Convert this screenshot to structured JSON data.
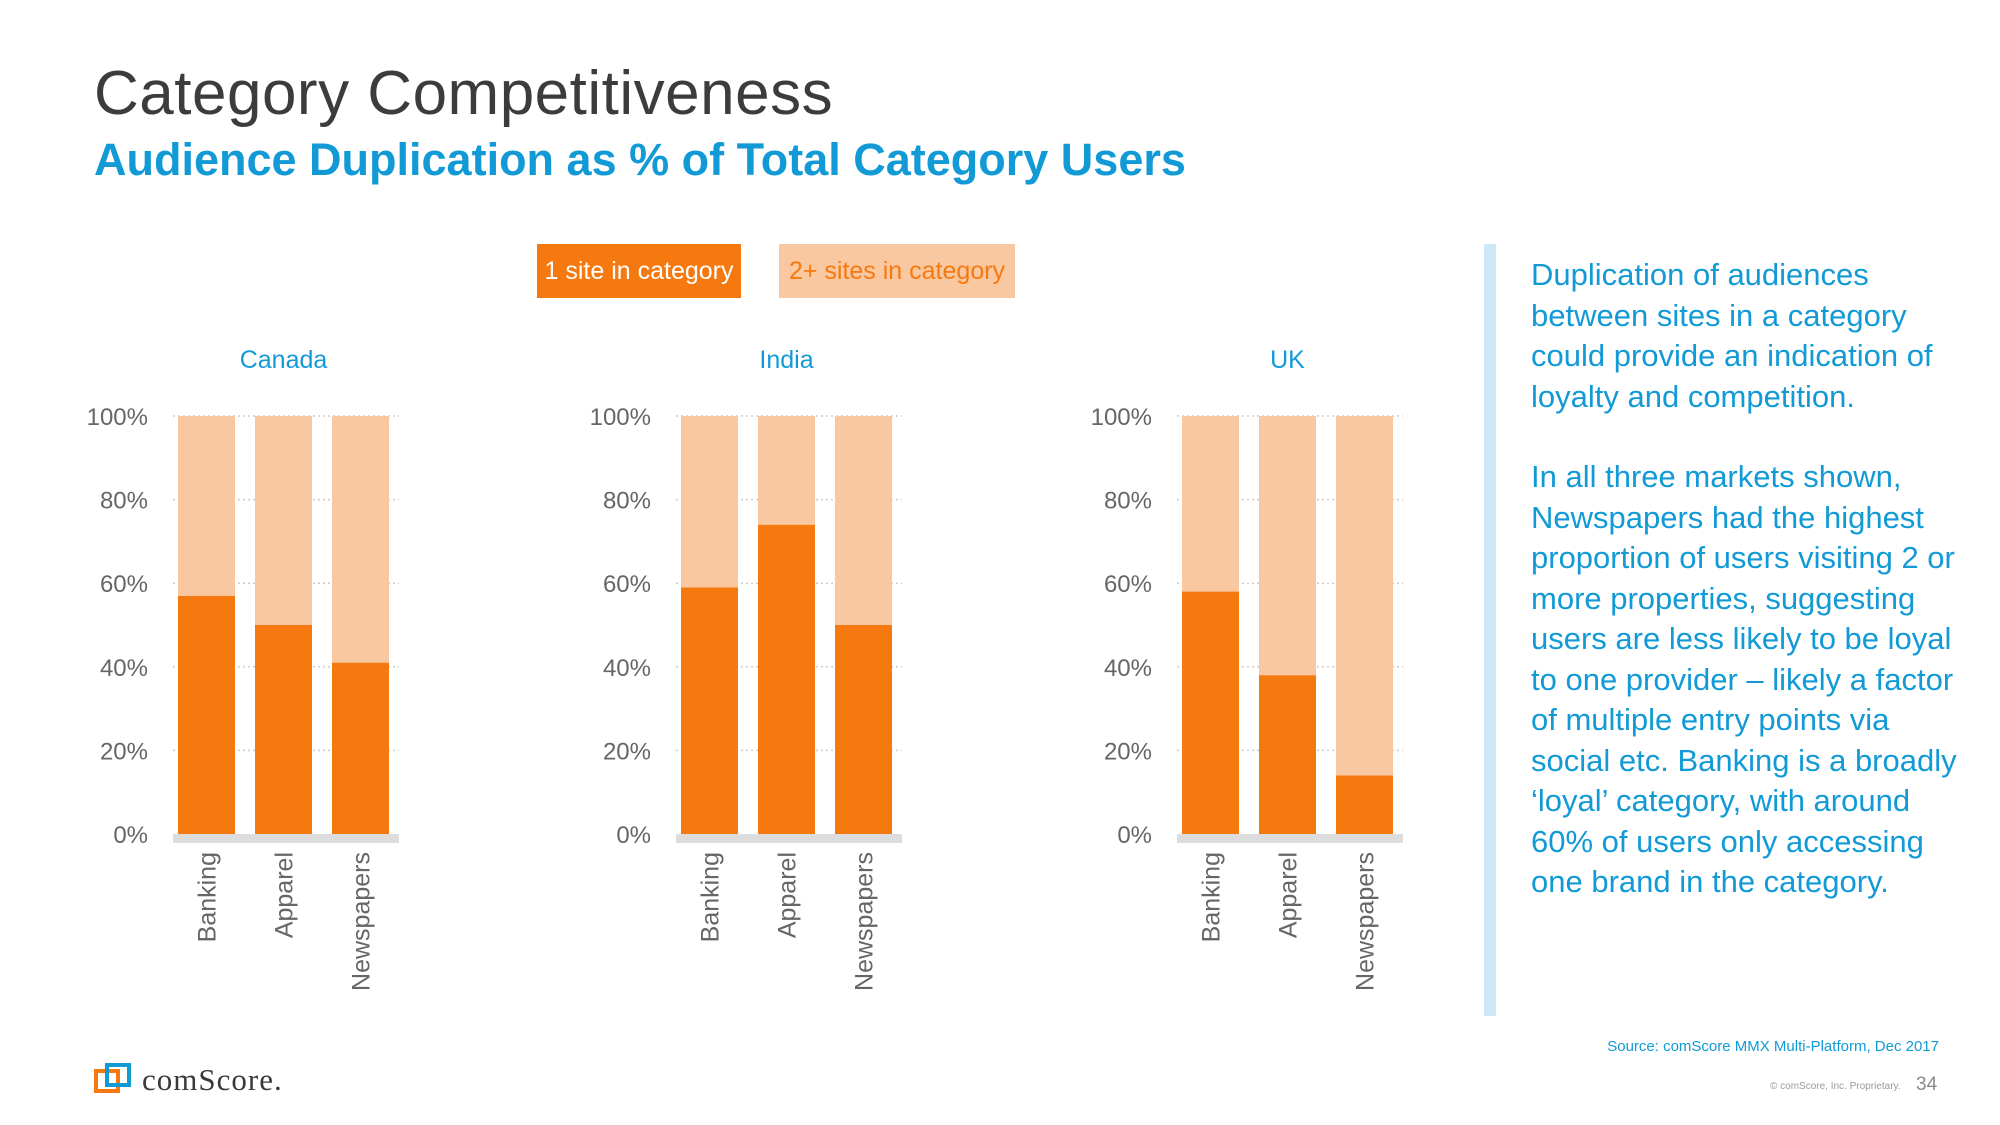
{
  "header": {
    "title": "Category Competitiveness",
    "subtitle": "Audience Duplication as % of Total Category Users"
  },
  "legend": {
    "series_1": "1 site in category",
    "series_2": "2+ sites in category"
  },
  "colors": {
    "series_1": "#f6790f",
    "series_2": "#f9c7a0",
    "accent_blue": "#129ad6",
    "axis_text": "#666666",
    "baseline": "#dddddd"
  },
  "chart_data": [
    {
      "type": "bar",
      "stacked": true,
      "title": "Canada",
      "categories": [
        "Banking",
        "Apparel",
        "Newspapers"
      ],
      "series": [
        {
          "name": "1 site in category",
          "values": [
            57,
            50,
            41
          ]
        },
        {
          "name": "2+ sites in category",
          "values": [
            43,
            50,
            59
          ]
        }
      ],
      "yticks": [
        "0%",
        "20%",
        "40%",
        "60%",
        "80%",
        "100%"
      ],
      "ylim": [
        0,
        100
      ]
    },
    {
      "type": "bar",
      "stacked": true,
      "title": "India",
      "categories": [
        "Banking",
        "Apparel",
        "Newspapers"
      ],
      "series": [
        {
          "name": "1 site in category",
          "values": [
            59,
            74,
            50
          ]
        },
        {
          "name": "2+ sites in category",
          "values": [
            41,
            26,
            50
          ]
        }
      ],
      "yticks": [
        "0%",
        "20%",
        "40%",
        "60%",
        "80%",
        "100%"
      ],
      "ylim": [
        0,
        100
      ]
    },
    {
      "type": "bar",
      "stacked": true,
      "title": "UK",
      "categories": [
        "Banking",
        "Apparel",
        "Newspapers"
      ],
      "series": [
        {
          "name": "1 site in category",
          "values": [
            58,
            38,
            14
          ]
        },
        {
          "name": "2+ sites in category",
          "values": [
            42,
            62,
            86
          ]
        }
      ],
      "yticks": [
        "0%",
        "20%",
        "40%",
        "60%",
        "80%",
        "100%"
      ],
      "ylim": [
        0,
        100
      ]
    }
  ],
  "sidebar": {
    "paragraph_1": "Duplication of audiences between sites in a category could provide an indication of loyalty and competition.",
    "paragraph_2": "In all three markets shown, Newspapers had the highest proportion of users visiting 2 or more properties, suggesting users are less likely to be loyal to one provider – likely a factor of multiple entry points via social etc. Banking is a broadly ‘loyal’ category, with around 60% of users only accessing one brand in the category."
  },
  "footer": {
    "source": "Source: comScore MMX Multi-Platform, Dec 2017",
    "copyright": "© comScore, Inc. Proprietary.",
    "page_number": "34",
    "logo_text": "comScore."
  }
}
